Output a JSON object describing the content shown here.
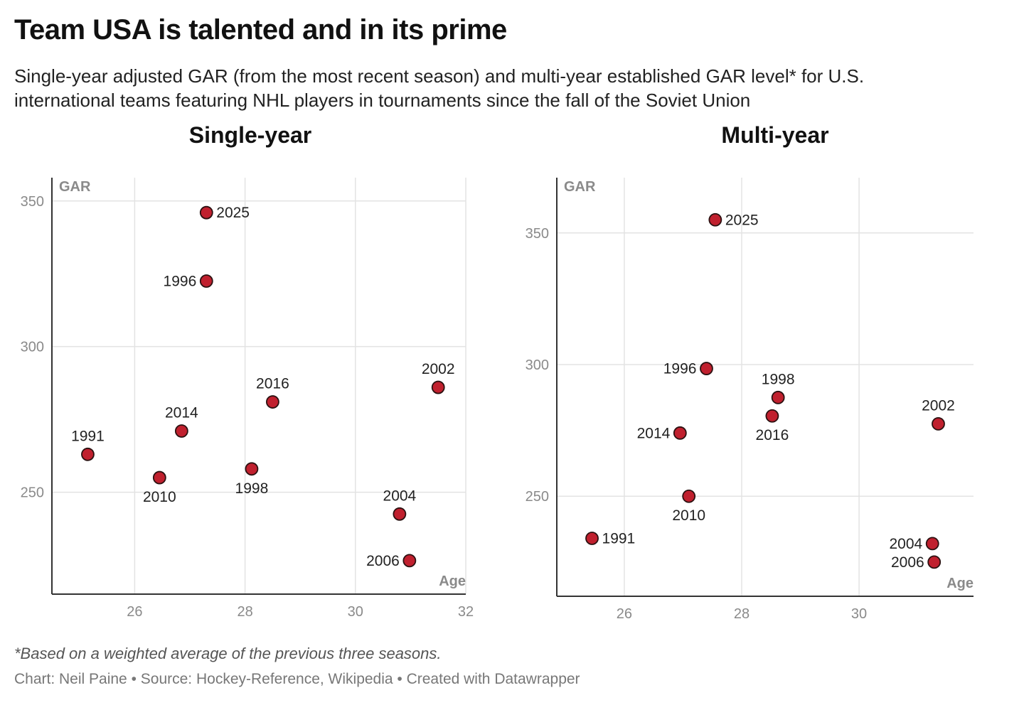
{
  "title": "Team USA is talented and in its prime",
  "subtitle": "Single-year adjusted GAR (from the most recent season) and multi-year established GAR level* for U.S. international teams featuring NHL players in tournaments since the fall of the Soviet Union",
  "footnote": "*Based on a weighted average of the previous three seasons.",
  "source": "Chart: Neil Paine • Source: Hockey-Reference, Wikipedia • Created with Datawrapper",
  "colors": {
    "dot": "#c0202e",
    "dot_outline": "#2b1111",
    "grid": "#e3e3e3"
  },
  "chart_data": [
    {
      "type": "scatter",
      "title": "Single-year",
      "xlabel": "Age",
      "ylabel": "GAR",
      "xlim": [
        24.5,
        32
      ],
      "ylim": [
        215,
        358
      ],
      "xticks": [
        26,
        28,
        30,
        32
      ],
      "yticks": [
        250,
        300,
        350
      ],
      "grid": true,
      "points": [
        {
          "label": "1991",
          "x": 25.15,
          "y": 263,
          "pos": "above"
        },
        {
          "label": "2010",
          "x": 26.45,
          "y": 255,
          "pos": "below"
        },
        {
          "label": "2014",
          "x": 26.85,
          "y": 271,
          "pos": "above"
        },
        {
          "label": "2025",
          "x": 27.3,
          "y": 346,
          "pos": "right"
        },
        {
          "label": "1996",
          "x": 27.3,
          "y": 322.5,
          "pos": "left"
        },
        {
          "label": "1998",
          "x": 28.12,
          "y": 258,
          "pos": "below"
        },
        {
          "label": "2016",
          "x": 28.5,
          "y": 281,
          "pos": "above"
        },
        {
          "label": "2002",
          "x": 31.5,
          "y": 286,
          "pos": "above"
        },
        {
          "label": "2004",
          "x": 30.8,
          "y": 242.5,
          "pos": "above"
        },
        {
          "label": "2006",
          "x": 30.98,
          "y": 226.5,
          "pos": "left"
        }
      ]
    },
    {
      "type": "scatter",
      "title": "Multi-year",
      "xlabel": "Age",
      "ylabel": "GAR",
      "xlim": [
        24.85,
        31.95
      ],
      "ylim": [
        212,
        371
      ],
      "xticks": [
        26,
        28,
        30
      ],
      "yticks": [
        250,
        300,
        350
      ],
      "grid": true,
      "points": [
        {
          "label": "1991",
          "x": 25.45,
          "y": 234,
          "pos": "right"
        },
        {
          "label": "2010",
          "x": 27.1,
          "y": 250,
          "pos": "below"
        },
        {
          "label": "2014",
          "x": 26.95,
          "y": 274,
          "pos": "left"
        },
        {
          "label": "2025",
          "x": 27.55,
          "y": 355,
          "pos": "right"
        },
        {
          "label": "1996",
          "x": 27.4,
          "y": 298.5,
          "pos": "left"
        },
        {
          "label": "1998",
          "x": 28.62,
          "y": 287.5,
          "pos": "above"
        },
        {
          "label": "2016",
          "x": 28.52,
          "y": 280.5,
          "pos": "below"
        },
        {
          "label": "2002",
          "x": 31.35,
          "y": 277.5,
          "pos": "above"
        },
        {
          "label": "2004",
          "x": 31.25,
          "y": 232,
          "pos": "left"
        },
        {
          "label": "2006",
          "x": 31.28,
          "y": 225,
          "pos": "left"
        }
      ]
    }
  ]
}
